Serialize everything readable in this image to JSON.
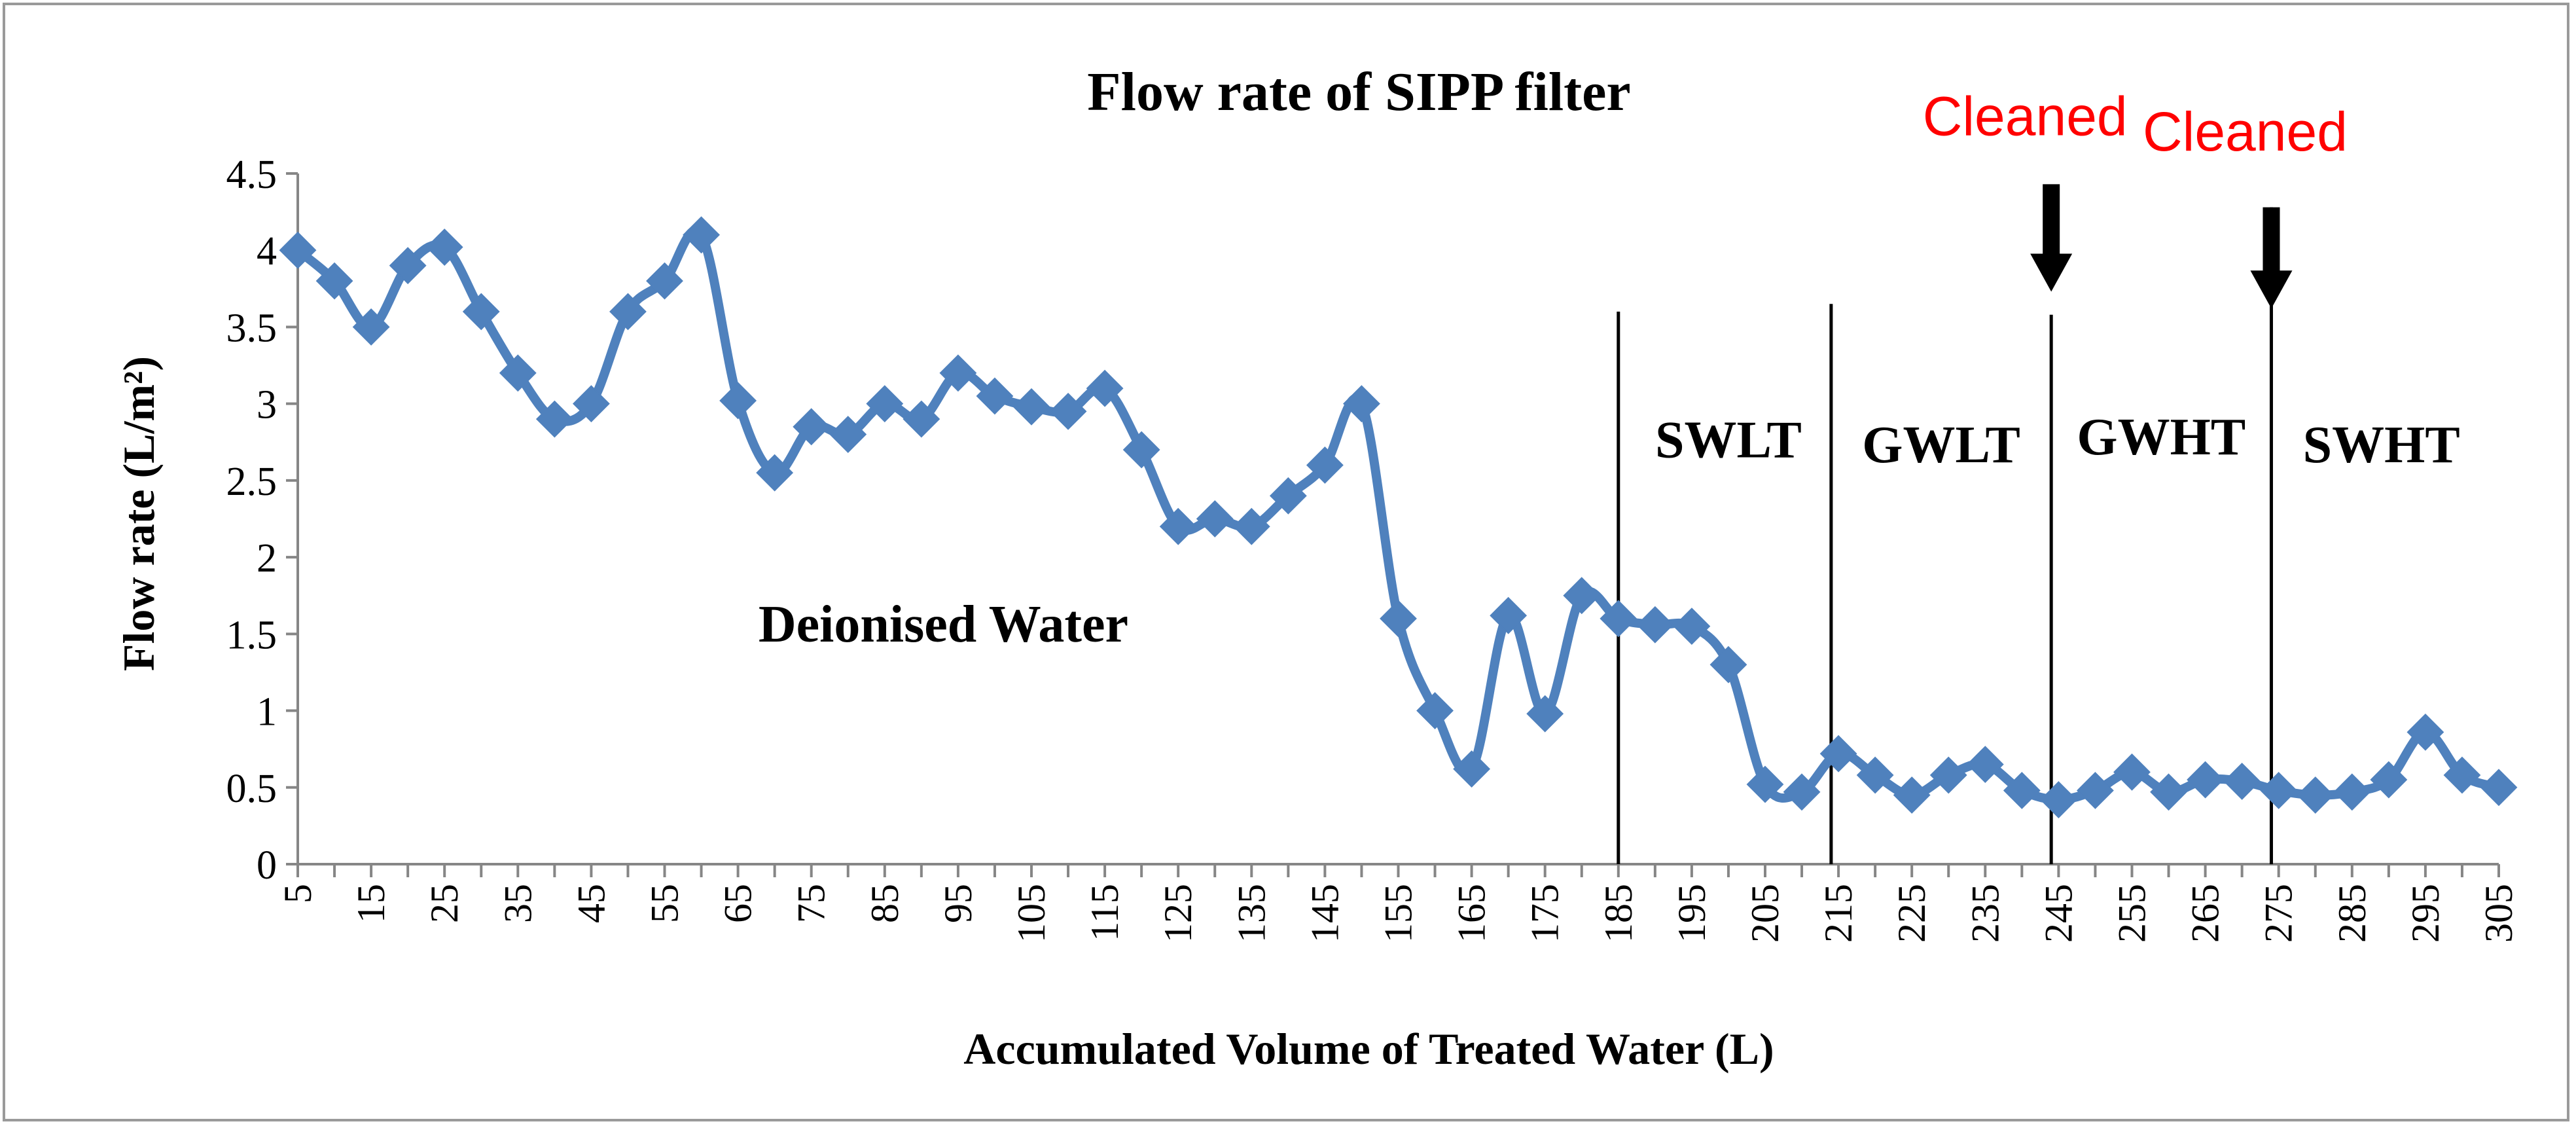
{
  "chart_data": {
    "type": "line",
    "title": "Flow rate of SIPP filter",
    "xlabel": "Accumulated Volume of Treated Water (L)",
    "ylabel": "Flow rate (L/m²)",
    "ylim": [
      0,
      4.5
    ],
    "yticks": [
      "0",
      "0.5",
      "1",
      "1.5",
      "2",
      "2.5",
      "3",
      "3.5",
      "4",
      "4.5"
    ],
    "ytick_values": [
      0,
      0.5,
      1,
      1.5,
      2,
      2.5,
      3,
      3.5,
      4,
      4.5
    ],
    "xtick_labels": [
      "5",
      "15",
      "25",
      "35",
      "45",
      "55",
      "65",
      "75",
      "85",
      "95",
      "105",
      "115",
      "125",
      "135",
      "145",
      "155",
      "165",
      "175",
      "185",
      "195",
      "205",
      "215",
      "225",
      "235",
      "245",
      "255",
      "265",
      "275",
      "285",
      "295",
      "305"
    ],
    "xtick_values": [
      5,
      15,
      25,
      35,
      45,
      55,
      65,
      75,
      85,
      95,
      105,
      115,
      125,
      135,
      145,
      155,
      165,
      175,
      185,
      195,
      205,
      215,
      225,
      235,
      245,
      255,
      265,
      275,
      285,
      295,
      305
    ],
    "x_range": [
      5,
      305
    ],
    "grid": false,
    "color": "#4f81bd",
    "series": [
      {
        "name": "Flow rate",
        "x": [
          5,
          10,
          15,
          20,
          25,
          30,
          35,
          40,
          45,
          50,
          55,
          60,
          65,
          70,
          75,
          80,
          85,
          90,
          95,
          100,
          105,
          110,
          115,
          120,
          125,
          130,
          135,
          140,
          145,
          150,
          155,
          160,
          165,
          170,
          175,
          180,
          185,
          190,
          195,
          200,
          205,
          210,
          215,
          220,
          225,
          230,
          235,
          240,
          245,
          250,
          255,
          260,
          265,
          270,
          275,
          280,
          285,
          290,
          295,
          300,
          305
        ],
        "values": [
          4.0,
          3.8,
          3.5,
          3.9,
          4.02,
          3.6,
          3.2,
          2.9,
          3.0,
          3.6,
          3.8,
          4.1,
          3.02,
          2.55,
          2.85,
          2.8,
          3.0,
          2.9,
          3.2,
          3.05,
          2.98,
          2.95,
          3.1,
          2.7,
          2.2,
          2.25,
          2.2,
          2.4,
          2.6,
          3.0,
          1.6,
          1.0,
          0.62,
          1.62,
          0.98,
          1.75,
          1.6,
          1.56,
          1.55,
          1.3,
          0.52,
          0.47,
          0.72,
          0.58,
          0.45,
          0.58,
          0.65,
          0.48,
          0.42,
          0.48,
          0.6,
          0.47,
          0.55,
          0.54,
          0.48,
          0.45,
          0.47,
          0.55,
          0.86,
          0.58,
          0.5
        ]
      }
    ],
    "dividers": [
      {
        "name": "swlt-start-line",
        "x": 185,
        "y_top": 3.6
      },
      {
        "name": "gwlt-start-line",
        "x": 214,
        "y_top": 3.65
      },
      {
        "name": "gwht-start-line",
        "x": 244,
        "y_top": 3.58
      },
      {
        "name": "swht-start-line",
        "x": 274,
        "y_top": 4.28
      }
    ],
    "region_labels": [
      {
        "name": "label-deionised-water",
        "text": "Deionised Water",
        "x": 93,
        "y": 1.45
      },
      {
        "name": "label-swlt",
        "text": "SWLT",
        "x": 200,
        "y": 2.65
      },
      {
        "name": "label-gwlt",
        "text": "GWLT",
        "x": 229,
        "y": 2.62
      },
      {
        "name": "label-gwht",
        "text": "GWHT",
        "x": 259,
        "y": 2.67
      },
      {
        "name": "label-swht",
        "text": "SWHT",
        "x": 289,
        "y": 2.62
      }
    ],
    "annotations": [
      {
        "name": "cleaned-annotation-1",
        "text": "Cleaned",
        "x": 244,
        "y_text": 4.75,
        "y_arrow_top": 4.43,
        "y_arrow_tip": 3.73
      },
      {
        "name": "cleaned-annotation-2",
        "text": "Cleaned",
        "x": 274,
        "y_text": 4.65,
        "y_arrow_top": 4.28,
        "y_arrow_tip": 3.62
      }
    ],
    "annotation_color": "#ff0000"
  }
}
